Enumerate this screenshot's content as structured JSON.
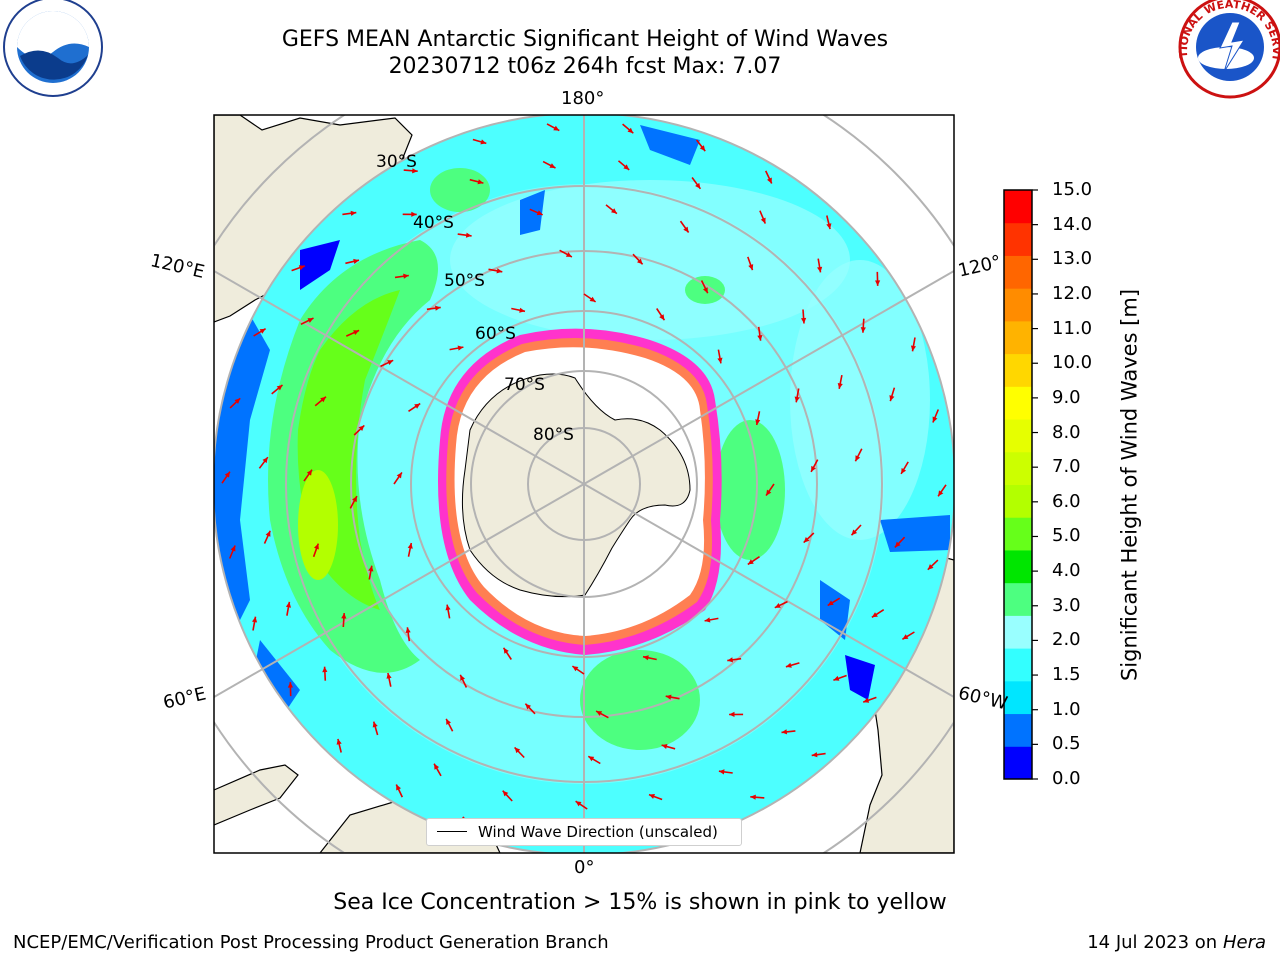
{
  "title": {
    "line1": "GEFS MEAN Antarctic Significant Height of Wind Waves",
    "line2": "20230712 t06z 264h fcst   Max: 7.07"
  },
  "logos": {
    "left": "NOAA",
    "right": "NATIONAL WEATHER SERVICE"
  },
  "map": {
    "meridian_labels": {
      "top": "180°",
      "bottom": "0°",
      "upper_left": "120°E",
      "lower_left": "60°E",
      "upper_right": "120°",
      "lower_right": "60°W"
    },
    "latitude_labels": [
      "30°S",
      "40°S",
      "50°S",
      "60°S",
      "70°S",
      "80°S"
    ],
    "legend_label": "Wind Wave Direction (unscaled)"
  },
  "colorbar": {
    "label": "Significant Height of Wind Waves [m]",
    "ticks": [
      "15.0",
      "14.0",
      "13.0",
      "12.0",
      "11.0",
      "10.0",
      "9.0",
      "8.0",
      "7.0",
      "6.0",
      "5.0",
      "4.0",
      "3.0",
      "2.0",
      "1.5",
      "1.0",
      "0.5",
      "0.0"
    ],
    "colors_bottom_to_top": [
      "#0000ff",
      "#0073ff",
      "#00e6ff",
      "#33ffff",
      "#99ffff",
      "#4dff80",
      "#00e600",
      "#66ff1a",
      "#b3ff00",
      "#ccff00",
      "#e6ff00",
      "#ffff00",
      "#ffd700",
      "#ffb300",
      "#ff8c00",
      "#ff6600",
      "#ff3300",
      "#ff0000"
    ]
  },
  "colors": {
    "land": "#efecdc",
    "ocean_base": "#4dffff",
    "ice": "#ffffff",
    "ice_edge": "#ff33cc",
    "arrow": "#e60000",
    "grid": "#b3b3b3"
  },
  "footer": {
    "note": "Sea Ice Concentration > 15% is shown in pink to yellow",
    "left": "NCEP/EMC/Verification Post Processing Product Generation Branch",
    "right_date": "14 Jul 2023 on ",
    "right_machine": "Hera"
  }
}
